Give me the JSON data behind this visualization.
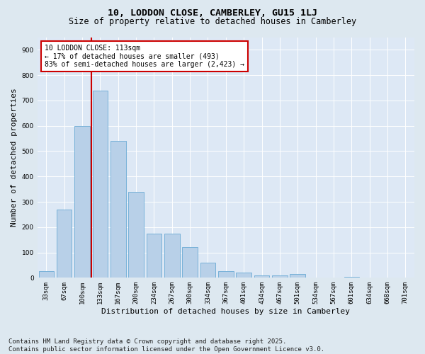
{
  "title1": "10, LODDON CLOSE, CAMBERLEY, GU15 1LJ",
  "title2": "Size of property relative to detached houses in Camberley",
  "xlabel": "Distribution of detached houses by size in Camberley",
  "ylabel": "Number of detached properties",
  "categories": [
    "33sqm",
    "67sqm",
    "100sqm",
    "133sqm",
    "167sqm",
    "200sqm",
    "234sqm",
    "267sqm",
    "300sqm",
    "334sqm",
    "367sqm",
    "401sqm",
    "434sqm",
    "467sqm",
    "501sqm",
    "534sqm",
    "567sqm",
    "601sqm",
    "634sqm",
    "668sqm",
    "701sqm"
  ],
  "values": [
    25,
    270,
    600,
    740,
    540,
    340,
    175,
    175,
    120,
    60,
    25,
    20,
    10,
    10,
    15,
    0,
    0,
    5,
    0,
    0,
    0
  ],
  "bar_color": "#b8d0e8",
  "bar_edge_color": "#6aaad4",
  "vline_x_index": 2.5,
  "vline_color": "#cc0000",
  "annotation_text": "10 LODDON CLOSE: 113sqm\n← 17% of detached houses are smaller (493)\n83% of semi-detached houses are larger (2,423) →",
  "annotation_box_color": "#ffffff",
  "annotation_box_edge": "#cc0000",
  "ylim": [
    0,
    950
  ],
  "yticks": [
    0,
    100,
    200,
    300,
    400,
    500,
    600,
    700,
    800,
    900
  ],
  "bg_color": "#dde8f0",
  "plot_bg_color": "#dde8f5",
  "footer": "Contains HM Land Registry data © Crown copyright and database right 2025.\nContains public sector information licensed under the Open Government Licence v3.0.",
  "title_fontsize": 9.5,
  "subtitle_fontsize": 8.5,
  "axis_label_fontsize": 8,
  "tick_fontsize": 6.5,
  "footer_fontsize": 6.5,
  "annotation_fontsize": 7
}
